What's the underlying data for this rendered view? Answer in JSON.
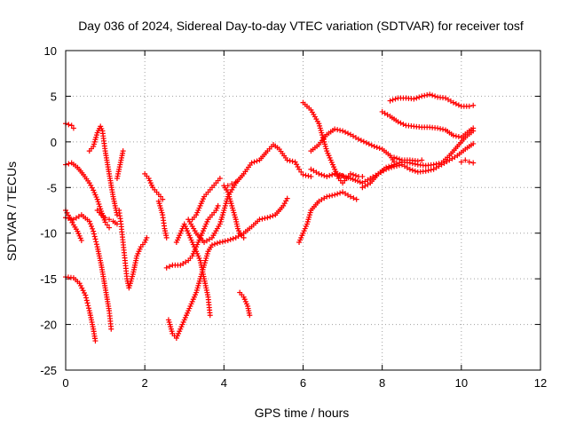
{
  "chart_data": {
    "type": "scatter",
    "title": "Day 036 of 2024, Sidereal Day-to-day VTEC variation (SDTVAR) for receiver tosf",
    "xlabel": "GPS time / hours",
    "ylabel": "SDTVAR / TECUs",
    "xlim": [
      0,
      12
    ],
    "ylim": [
      -25,
      10
    ],
    "xticks": [
      0,
      2,
      4,
      6,
      8,
      10,
      12
    ],
    "yticks": [
      -25,
      -20,
      -15,
      -10,
      -5,
      0,
      5,
      10
    ],
    "grid": true,
    "marker": "+",
    "color": "#ff0000",
    "series": [
      {
        "points": [
          [
            0.0,
            2.0
          ],
          [
            0.15,
            1.8
          ],
          [
            0.2,
            1.5
          ]
        ]
      },
      {
        "points": [
          [
            0.0,
            -2.5
          ],
          [
            0.15,
            -2.3
          ],
          [
            0.3,
            -2.8
          ],
          [
            0.45,
            -3.6
          ],
          [
            0.6,
            -4.5
          ],
          [
            0.7,
            -5.3
          ],
          [
            0.8,
            -6.3
          ],
          [
            0.9,
            -7.6
          ],
          [
            1.0,
            -8.8
          ],
          [
            1.1,
            -9.4
          ]
        ]
      },
      {
        "points": [
          [
            0.0,
            -7.5
          ],
          [
            0.1,
            -8.3
          ],
          [
            0.2,
            -9.1
          ],
          [
            0.3,
            -9.8
          ],
          [
            0.4,
            -10.8
          ]
        ]
      },
      {
        "points": [
          [
            0.0,
            -8.3
          ],
          [
            0.2,
            -8.5
          ],
          [
            0.4,
            -8.0
          ],
          [
            0.6,
            -8.7
          ],
          [
            0.7,
            -9.8
          ],
          [
            0.8,
            -11.5
          ],
          [
            0.9,
            -13.5
          ],
          [
            1.0,
            -16.0
          ],
          [
            1.1,
            -18.5
          ],
          [
            1.15,
            -20.5
          ]
        ]
      },
      {
        "points": [
          [
            0.0,
            -14.8
          ],
          [
            0.2,
            -14.9
          ],
          [
            0.35,
            -15.5
          ],
          [
            0.5,
            -16.8
          ],
          [
            0.6,
            -18.5
          ],
          [
            0.7,
            -20.5
          ],
          [
            0.75,
            -21.8
          ]
        ]
      },
      {
        "points": [
          [
            0.6,
            -1.0
          ],
          [
            0.7,
            -0.5
          ],
          [
            0.8,
            1.0
          ],
          [
            0.88,
            1.7
          ],
          [
            0.93,
            1.2
          ],
          [
            1.0,
            -1.0
          ],
          [
            1.1,
            -3.5
          ],
          [
            1.2,
            -6.0
          ],
          [
            1.3,
            -8.0
          ]
        ]
      },
      {
        "points": [
          [
            0.8,
            -7.5
          ],
          [
            0.9,
            -8.0
          ],
          [
            1.0,
            -8.3
          ],
          [
            1.1,
            -8.5
          ],
          [
            1.2,
            -8.7
          ],
          [
            1.3,
            -9.0
          ]
        ]
      },
      {
        "points": [
          [
            1.35,
            -7.5
          ],
          [
            1.4,
            -9.0
          ],
          [
            1.45,
            -11.0
          ],
          [
            1.5,
            -13.0
          ],
          [
            1.55,
            -15.0
          ],
          [
            1.6,
            -16.0
          ],
          [
            1.7,
            -14.5
          ],
          [
            1.8,
            -12.5
          ],
          [
            1.9,
            -11.5
          ],
          [
            2.0,
            -11.0
          ],
          [
            2.05,
            -10.5
          ]
        ]
      },
      {
        "points": [
          [
            1.3,
            -4.0
          ],
          [
            1.35,
            -3.0
          ],
          [
            1.4,
            -2.0
          ],
          [
            1.45,
            -1.0
          ]
        ]
      },
      {
        "points": [
          [
            2.0,
            -3.5
          ],
          [
            2.1,
            -4.0
          ],
          [
            2.2,
            -5.0
          ],
          [
            2.3,
            -5.5
          ],
          [
            2.4,
            -6.0
          ],
          [
            2.45,
            -6.3
          ]
        ]
      },
      {
        "points": [
          [
            2.35,
            -6.5
          ],
          [
            2.45,
            -8.0
          ],
          [
            2.5,
            -9.5
          ],
          [
            2.55,
            -10.5
          ]
        ]
      },
      {
        "points": [
          [
            2.55,
            -13.8
          ],
          [
            2.7,
            -13.5
          ],
          [
            2.9,
            -13.5
          ],
          [
            3.1,
            -13.0
          ],
          [
            3.2,
            -12.5
          ],
          [
            3.3,
            -11.5
          ],
          [
            3.4,
            -10.5
          ],
          [
            3.5,
            -9.5
          ],
          [
            3.6,
            -8.5
          ],
          [
            3.7,
            -8.0
          ],
          [
            3.8,
            -7.5
          ],
          [
            3.85,
            -7.0
          ]
        ]
      },
      {
        "points": [
          [
            2.6,
            -19.5
          ],
          [
            2.7,
            -21.0
          ],
          [
            2.8,
            -21.5
          ],
          [
            2.9,
            -20.5
          ],
          [
            3.0,
            -19.5
          ],
          [
            3.1,
            -18.5
          ],
          [
            3.2,
            -17.5
          ],
          [
            3.3,
            -16.5
          ],
          [
            3.4,
            -15.0
          ],
          [
            3.5,
            -13.5
          ],
          [
            3.6,
            -12.0
          ],
          [
            3.7,
            -11.3
          ],
          [
            3.9,
            -11.0
          ],
          [
            4.1,
            -10.8
          ],
          [
            4.3,
            -10.5
          ],
          [
            4.5,
            -10.0
          ],
          [
            4.7,
            -9.3
          ],
          [
            4.9,
            -8.5
          ],
          [
            5.1,
            -8.3
          ],
          [
            5.3,
            -8.0
          ],
          [
            5.5,
            -7.0
          ],
          [
            5.6,
            -6.2
          ]
        ]
      },
      {
        "points": [
          [
            2.8,
            -11.0
          ],
          [
            2.9,
            -10.0
          ],
          [
            3.0,
            -9.0
          ],
          [
            3.1,
            -10.0
          ],
          [
            3.2,
            -11.0
          ],
          [
            3.3,
            -12.0
          ],
          [
            3.4,
            -13.0
          ],
          [
            3.5,
            -15.0
          ],
          [
            3.6,
            -17.0
          ],
          [
            3.65,
            -19.0
          ]
        ]
      },
      {
        "points": [
          [
            3.2,
            -8.5
          ],
          [
            3.3,
            -8.0
          ],
          [
            3.4,
            -7.0
          ],
          [
            3.5,
            -6.0
          ],
          [
            3.6,
            -5.5
          ],
          [
            3.7,
            -5.0
          ],
          [
            3.8,
            -4.5
          ],
          [
            3.9,
            -4.0
          ]
        ]
      },
      {
        "points": [
          [
            3.1,
            -8.5
          ],
          [
            3.3,
            -10.0
          ],
          [
            3.5,
            -11.0
          ],
          [
            3.7,
            -10.5
          ],
          [
            3.9,
            -9.0
          ],
          [
            4.0,
            -7.5
          ],
          [
            4.1,
            -6.0
          ],
          [
            4.3,
            -4.5
          ],
          [
            4.5,
            -3.5
          ],
          [
            4.7,
            -2.3
          ],
          [
            4.9,
            -2.0
          ],
          [
            5.1,
            -1.0
          ],
          [
            5.25,
            -0.3
          ],
          [
            5.4,
            -0.8
          ],
          [
            5.6,
            -2.0
          ],
          [
            5.8,
            -2.2
          ],
          [
            5.9,
            -3.0
          ],
          [
            6.0,
            -3.6
          ],
          [
            6.2,
            -3.8
          ]
        ]
      },
      {
        "points": [
          [
            4.0,
            -4.8
          ],
          [
            4.1,
            -5.5
          ],
          [
            4.2,
            -7.0
          ],
          [
            4.3,
            -8.5
          ],
          [
            4.35,
            -9.5
          ],
          [
            4.4,
            -10.0
          ],
          [
            4.5,
            -10.5
          ]
        ]
      },
      {
        "points": [
          [
            4.1,
            -4.8
          ],
          [
            4.2,
            -4.6
          ],
          [
            4.3,
            -4.4
          ]
        ]
      },
      {
        "points": [
          [
            4.4,
            -16.5
          ],
          [
            4.5,
            -17.0
          ],
          [
            4.6,
            -18.0
          ],
          [
            4.65,
            -19.0
          ]
        ]
      },
      {
        "points": [
          [
            5.9,
            -11.0
          ],
          [
            6.0,
            -10.0
          ],
          [
            6.1,
            -9.0
          ],
          [
            6.2,
            -7.5
          ],
          [
            6.4,
            -6.5
          ],
          [
            6.6,
            -6.0
          ],
          [
            6.8,
            -5.8
          ],
          [
            7.0,
            -5.5
          ],
          [
            7.2,
            -6.0
          ],
          [
            7.35,
            -6.3
          ]
        ]
      },
      {
        "points": [
          [
            6.0,
            4.3
          ],
          [
            6.2,
            3.5
          ],
          [
            6.4,
            2.0
          ],
          [
            6.5,
            0.5
          ],
          [
            6.6,
            -1.0
          ],
          [
            6.7,
            -2.0
          ],
          [
            6.8,
            -3.0
          ],
          [
            6.9,
            -4.0
          ],
          [
            7.0,
            -4.5
          ],
          [
            7.1,
            -4.0
          ],
          [
            7.2,
            -3.5
          ],
          [
            7.4,
            -3.8
          ],
          [
            7.5,
            -3.8
          ]
        ]
      },
      {
        "points": [
          [
            6.2,
            -3.0
          ],
          [
            6.4,
            -3.5
          ],
          [
            6.6,
            -3.8
          ],
          [
            6.8,
            -3.5
          ],
          [
            7.0,
            -3.7
          ]
        ]
      },
      {
        "points": [
          [
            6.2,
            -1.0
          ],
          [
            6.4,
            -0.3
          ],
          [
            6.6,
            0.8
          ],
          [
            6.8,
            1.4
          ],
          [
            7.0,
            1.2
          ],
          [
            7.2,
            0.8
          ],
          [
            7.4,
            0.3
          ],
          [
            7.6,
            -0.1
          ],
          [
            7.8,
            -0.5
          ],
          [
            8.0,
            -0.8
          ],
          [
            8.2,
            -1.5
          ],
          [
            8.3,
            -2.2
          ]
        ]
      },
      {
        "points": [
          [
            6.8,
            -3.5
          ],
          [
            7.2,
            -4.0
          ],
          [
            7.5,
            -4.5
          ],
          [
            7.7,
            -4.0
          ],
          [
            7.9,
            -3.5
          ],
          [
            8.1,
            -2.8
          ],
          [
            8.3,
            -2.5
          ],
          [
            8.5,
            -2.2
          ],
          [
            8.7,
            -2.3
          ],
          [
            8.9,
            -2.5
          ],
          [
            9.1,
            -2.6
          ],
          [
            9.3,
            -2.5
          ],
          [
            9.5,
            -2.3
          ],
          [
            9.7,
            -1.5
          ],
          [
            9.9,
            -0.5
          ],
          [
            10.1,
            0.5
          ],
          [
            10.3,
            1.2
          ]
        ]
      },
      {
        "points": [
          [
            7.5,
            -5.0
          ],
          [
            7.7,
            -4.5
          ],
          [
            7.9,
            -3.5
          ],
          [
            8.1,
            -3.0
          ],
          [
            8.3,
            -2.7
          ],
          [
            8.5,
            -2.5
          ],
          [
            8.7,
            -3.0
          ],
          [
            8.9,
            -3.3
          ],
          [
            9.1,
            -3.2
          ],
          [
            9.3,
            -3.0
          ],
          [
            9.5,
            -2.5
          ],
          [
            9.7,
            -2.0
          ],
          [
            9.9,
            -1.5
          ],
          [
            10.1,
            -0.8
          ],
          [
            10.3,
            -0.2
          ]
        ]
      },
      {
        "points": [
          [
            8.0,
            3.3
          ],
          [
            8.2,
            2.8
          ],
          [
            8.4,
            2.2
          ],
          [
            8.6,
            1.8
          ],
          [
            8.8,
            1.7
          ],
          [
            9.0,
            1.6
          ],
          [
            9.2,
            1.6
          ],
          [
            9.4,
            1.5
          ],
          [
            9.6,
            1.3
          ],
          [
            9.8,
            0.7
          ],
          [
            10.0,
            0.5
          ],
          [
            10.2,
            1.2
          ],
          [
            10.3,
            1.5
          ]
        ]
      },
      {
        "points": [
          [
            8.2,
            4.5
          ],
          [
            8.4,
            4.8
          ],
          [
            8.6,
            4.8
          ],
          [
            8.8,
            4.7
          ],
          [
            9.0,
            5.0
          ],
          [
            9.2,
            5.2
          ],
          [
            9.4,
            4.9
          ],
          [
            9.6,
            4.8
          ],
          [
            9.8,
            4.3
          ],
          [
            10.0,
            3.9
          ],
          [
            10.2,
            3.9
          ],
          [
            10.3,
            4.0
          ]
        ]
      },
      {
        "points": [
          [
            8.3,
            -1.7
          ],
          [
            8.5,
            -2.0
          ],
          [
            8.7,
            -2.0
          ],
          [
            8.9,
            -2.1
          ],
          [
            9.0,
            -2.0
          ]
        ]
      },
      {
        "points": [
          [
            10.0,
            -2.2
          ],
          [
            10.1,
            -2.0
          ],
          [
            10.2,
            -2.2
          ],
          [
            10.3,
            -2.3
          ]
        ]
      }
    ]
  }
}
